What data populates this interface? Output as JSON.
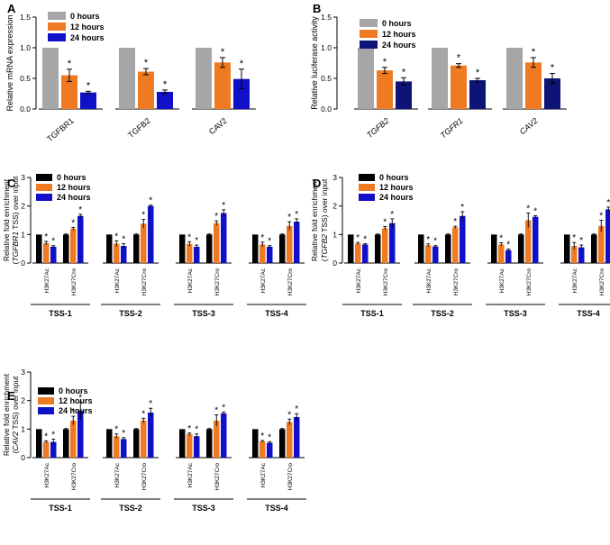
{
  "chart_data": [
    {
      "panel": "A",
      "type": "bar",
      "ylabel": "Relative mRNA expression",
      "ylim": [
        0,
        1.5
      ],
      "yticks": [
        "0.0",
        "0.5",
        "1.0",
        "1.5"
      ],
      "legend_position": "top-left",
      "categories": [
        "TGFBR1",
        "TGFB2",
        "CAV2"
      ],
      "category_italic": false,
      "series": [
        {
          "name": "0 hours",
          "color": "#a6a6a6",
          "values": [
            1.0,
            1.0,
            1.0
          ],
          "errors": [
            0,
            0,
            0
          ],
          "stars": [
            false,
            false,
            false
          ]
        },
        {
          "name": "12 hours",
          "color": "#f07a22",
          "values": [
            0.55,
            0.61,
            0.76
          ],
          "errors": [
            0.1,
            0.05,
            0.08
          ],
          "stars": [
            true,
            true,
            true
          ]
        },
        {
          "name": "24 hours",
          "color": "#1010c8",
          "values": [
            0.27,
            0.28,
            0.49
          ],
          "errors": [
            0.02,
            0.03,
            0.16
          ],
          "stars": [
            true,
            true,
            true
          ]
        }
      ],
      "star_symbol": "*"
    },
    {
      "panel": "B",
      "type": "bar",
      "ylabel": "Relative luciferase activity",
      "ylim": [
        0,
        1.5
      ],
      "yticks": [
        "0.0",
        "0.5",
        "1.0",
        "1.5"
      ],
      "legend_position": "top-left",
      "categories": [
        "TGFB2",
        "TGFR1",
        "CAV2"
      ],
      "category_italic": true,
      "series": [
        {
          "name": "0 hours",
          "color": "#a6a6a6",
          "values": [
            1.0,
            1.0,
            1.0
          ],
          "errors": [
            0,
            0,
            0
          ],
          "stars": [
            false,
            false,
            false
          ]
        },
        {
          "name": "12 hours",
          "color": "#f07a22",
          "values": [
            0.63,
            0.71,
            0.76
          ],
          "errors": [
            0.05,
            0.03,
            0.08
          ],
          "stars": [
            true,
            true,
            true
          ]
        },
        {
          "name": "24 hours",
          "color": "#0d1475",
          "values": [
            0.45,
            0.47,
            0.5
          ],
          "errors": [
            0.06,
            0.03,
            0.08
          ],
          "stars": [
            true,
            true,
            true
          ]
        }
      ],
      "star_symbol": "*"
    },
    {
      "panel": "C",
      "type": "bar",
      "ylabel_line1": "Relative fold enrichment",
      "ylabel_line2_prefix": "(",
      "ylabel_line2_gene": "TGFBR1",
      "ylabel_line2_suffix": " TSS) over input",
      "ylim": [
        0,
        3
      ],
      "yticks": [
        "0",
        "1",
        "2",
        "3"
      ],
      "legend_position": "top-left",
      "groups": [
        "TSS-1",
        "TSS-2",
        "TSS-3",
        "TSS-4"
      ],
      "marks": [
        "H3K27Ac",
        "H3K27Cro"
      ],
      "series": [
        {
          "name": "0 hours",
          "color": "#000000",
          "values": [
            [
              1.0,
              1.0
            ],
            [
              1.0,
              1.0
            ],
            [
              1.0,
              1.0
            ],
            [
              1.0,
              1.0
            ]
          ],
          "errors": [
            [
              0,
              0.02
            ],
            [
              0,
              0.02
            ],
            [
              0,
              0.02
            ],
            [
              0,
              0.02
            ]
          ],
          "stars": [
            [
              false,
              false
            ],
            [
              false,
              false
            ],
            [
              false,
              false
            ],
            [
              false,
              false
            ]
          ]
        },
        {
          "name": "12 hours",
          "color": "#f07a22",
          "values": [
            [
              0.7,
              1.2
            ],
            [
              0.68,
              1.38
            ],
            [
              0.67,
              1.4
            ],
            [
              0.65,
              1.3
            ]
          ],
          "errors": [
            [
              0.06,
              0.05
            ],
            [
              0.1,
              0.15
            ],
            [
              0.08,
              0.08
            ],
            [
              0.08,
              0.15
            ]
          ],
          "stars": [
            [
              true,
              true
            ],
            [
              true,
              true
            ],
            [
              true,
              true
            ],
            [
              true,
              true
            ]
          ]
        },
        {
          "name": "24 hours",
          "color": "#1010c8",
          "values": [
            [
              0.57,
              1.65
            ],
            [
              0.6,
              2.0
            ],
            [
              0.57,
              1.75
            ],
            [
              0.57,
              1.45
            ]
          ],
          "errors": [
            [
              0.04,
              0.06
            ],
            [
              0.08,
              0.03
            ],
            [
              0.06,
              0.12
            ],
            [
              0.04,
              0.1
            ]
          ],
          "stars": [
            [
              true,
              true
            ],
            [
              true,
              true
            ],
            [
              true,
              true
            ],
            [
              true,
              true
            ]
          ]
        }
      ],
      "star_symbol": "*"
    },
    {
      "panel": "D",
      "type": "bar",
      "ylabel_line1": "Relative fold enrichment",
      "ylabel_line2_prefix": "(",
      "ylabel_line2_gene": "TGFB2",
      "ylabel_line2_suffix": " TSS) over input",
      "ylim": [
        0,
        3
      ],
      "yticks": [
        "0",
        "1",
        "2",
        "3"
      ],
      "legend_position": "top-left",
      "groups": [
        "TSS-1",
        "TSS-2",
        "TSS-3",
        "TSS-4"
      ],
      "marks": [
        "H3K27Ac",
        "H3K27Cro"
      ],
      "series": [
        {
          "name": "0 hours",
          "color": "#000000",
          "values": [
            [
              1.0,
              1.0
            ],
            [
              1.0,
              1.0
            ],
            [
              1.0,
              1.0
            ],
            [
              1.0,
              1.0
            ]
          ],
          "errors": [
            [
              0,
              0.02
            ],
            [
              0,
              0.02
            ],
            [
              0,
              0.02
            ],
            [
              0,
              0.02
            ]
          ],
          "stars": [
            [
              false,
              false
            ],
            [
              false,
              false
            ],
            [
              false,
              false
            ],
            [
              false,
              false
            ]
          ]
        },
        {
          "name": "12 hours",
          "color": "#f07a22",
          "values": [
            [
              0.68,
              1.22
            ],
            [
              0.62,
              1.25
            ],
            [
              0.65,
              1.5
            ],
            [
              0.6,
              1.3
            ]
          ],
          "errors": [
            [
              0.04,
              0.06
            ],
            [
              0.05,
              0.04
            ],
            [
              0.06,
              0.25
            ],
            [
              0.12,
              0.2
            ]
          ],
          "stars": [
            [
              true,
              true
            ],
            [
              true,
              true
            ],
            [
              true,
              true
            ],
            [
              true,
              true
            ]
          ]
        },
        {
          "name": "24 hours",
          "color": "#1010c8",
          "values": [
            [
              0.65,
              1.4
            ],
            [
              0.58,
              1.65
            ],
            [
              0.45,
              1.62
            ],
            [
              0.55,
              1.88
            ]
          ],
          "errors": [
            [
              0.03,
              0.15
            ],
            [
              0.03,
              0.15
            ],
            [
              0.04,
              0.04
            ],
            [
              0.08,
              0.08
            ]
          ],
          "stars": [
            [
              true,
              true
            ],
            [
              true,
              true
            ],
            [
              true,
              true
            ],
            [
              true,
              true
            ]
          ]
        }
      ],
      "star_symbol": "*"
    },
    {
      "panel": "E",
      "type": "bar",
      "ylabel_line1": "Relative fold enrichment",
      "ylabel_line2_prefix": "(",
      "ylabel_line2_gene": "CAV2",
      "ylabel_line2_suffix": " TSS) over input",
      "ylim": [
        0,
        3
      ],
      "yticks": [
        "0",
        "1",
        "2",
        "3"
      ],
      "legend_position": "top-left",
      "groups": [
        "TSS-1",
        "TSS-2",
        "TSS-3",
        "TSS-4"
      ],
      "marks": [
        "H3K27Ac",
        "H3K27Cro"
      ],
      "series": [
        {
          "name": "0 hours",
          "color": "#000000",
          "values": [
            [
              1.0,
              1.0
            ],
            [
              1.0,
              1.0
            ],
            [
              1.0,
              1.0
            ],
            [
              1.0,
              1.0
            ]
          ],
          "errors": [
            [
              0,
              0.02
            ],
            [
              0,
              0.02
            ],
            [
              0,
              0.02
            ],
            [
              0,
              0.02
            ]
          ],
          "stars": [
            [
              false,
              false
            ],
            [
              false,
              false
            ],
            [
              false,
              false
            ],
            [
              false,
              false
            ]
          ]
        },
        {
          "name": "12 hours",
          "color": "#f07a22",
          "values": [
            [
              0.55,
              1.3
            ],
            [
              0.75,
              1.3
            ],
            [
              0.82,
              1.3
            ],
            [
              0.57,
              1.25
            ]
          ],
          "errors": [
            [
              0.04,
              0.15
            ],
            [
              0.08,
              0.08
            ],
            [
              0.04,
              0.2
            ],
            [
              0.03,
              0.1
            ]
          ],
          "stars": [
            [
              true,
              true
            ],
            [
              true,
              true
            ],
            [
              true,
              true
            ],
            [
              true,
              true
            ]
          ]
        },
        {
          "name": "24 hours",
          "color": "#1010c8",
          "values": [
            [
              0.55,
              1.65
            ],
            [
              0.65,
              1.58
            ],
            [
              0.75,
              1.55
            ],
            [
              0.52,
              1.42
            ]
          ],
          "errors": [
            [
              0.1,
              0.3
            ],
            [
              0.05,
              0.15
            ],
            [
              0.08,
              0.05
            ],
            [
              0.04,
              0.12
            ]
          ],
          "stars": [
            [
              true,
              true
            ],
            [
              true,
              true
            ],
            [
              true,
              true
            ],
            [
              true,
              true
            ]
          ]
        }
      ],
      "star_symbol": "*"
    }
  ]
}
